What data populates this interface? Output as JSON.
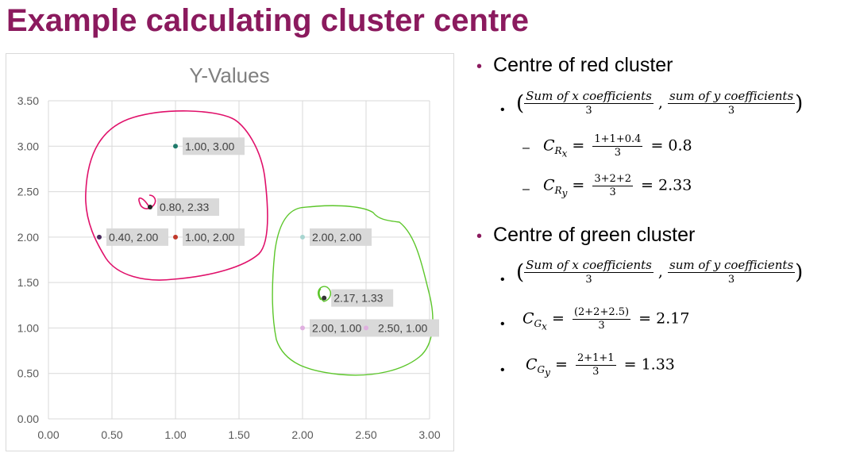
{
  "slide": {
    "title": "Example calculating cluster centre"
  },
  "chart_data": {
    "type": "scatter",
    "title": "Y-Values",
    "xlim": [
      0,
      3
    ],
    "ylim": [
      0,
      3.5
    ],
    "x_ticks": [
      "0.00",
      "0.50",
      "1.00",
      "1.50",
      "2.00",
      "2.50",
      "3.00"
    ],
    "y_ticks": [
      "0.00",
      "0.50",
      "1.00",
      "1.50",
      "2.00",
      "2.50",
      "3.00",
      "3.50"
    ],
    "grid": true,
    "points": [
      {
        "x": 1.0,
        "y": 3.0,
        "label": "1.00, 3.00",
        "color": "#1f7a6a"
      },
      {
        "x": 0.8,
        "y": 2.33,
        "label": "0.80, 2.33",
        "color": "#222222"
      },
      {
        "x": 0.4,
        "y": 2.0,
        "label": "0.40, 2.00",
        "color": "#4b2a5e"
      },
      {
        "x": 1.0,
        "y": 2.0,
        "label": "1.00, 2.00",
        "color": "#c0392b"
      },
      {
        "x": 2.0,
        "y": 2.0,
        "label": "2.00, 2.00",
        "color": "#a8d5d0"
      },
      {
        "x": 2.17,
        "y": 1.33,
        "label": "2.17, 1.33",
        "color": "#333333"
      },
      {
        "x": 2.0,
        "y": 1.0,
        "label": "2.00, 1.00",
        "color": "#e0b0e0"
      },
      {
        "x": 2.5,
        "y": 1.0,
        "label": "2.50, 1.00",
        "color": "#e0b0e0"
      }
    ],
    "annotation_colors": {
      "red_cluster": "#e0106a",
      "green_cluster": "#5cc62a"
    }
  },
  "right": {
    "red_heading": "Centre of red cluster",
    "green_heading": "Centre of green cluster",
    "formula_num_x": "Sum of x coefficients",
    "formula_num_y": "sum of y coefficients",
    "formula_den": "3",
    "formula_sep": ",",
    "paren_open": "(",
    "paren_close": ")",
    "bullet": "•",
    "dash": "–",
    "eq": "=",
    "c": "C",
    "sub_rx": "R",
    "sub_x": "x",
    "sub_ry": "R",
    "sub_y": "y",
    "sub_gx": "G",
    "sub_gy": "G",
    "red_x_num": "1+1+0.4",
    "red_x_den": "3",
    "red_x_val": "0.8",
    "red_y_num": "3+2+2",
    "red_y_den": "3",
    "red_y_val": "2.33",
    "green_x_num": "(2+2+2.5)",
    "green_x_den": "3",
    "green_x_val": "2.17",
    "green_y_num": "2+1+1",
    "green_y_den": "3",
    "green_y_val": "1.33"
  }
}
